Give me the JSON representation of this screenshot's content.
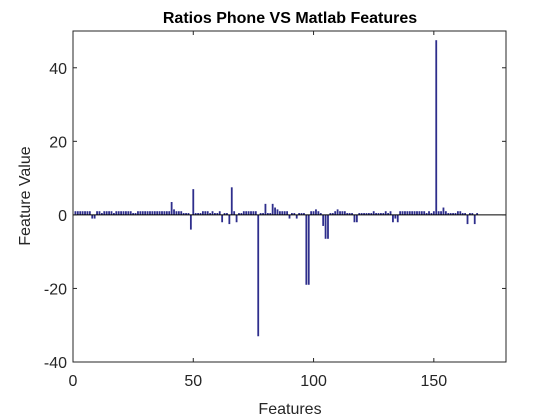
{
  "chart_data": {
    "type": "bar",
    "title": "Ratios Phone VS Matlab Features",
    "xlabel": "Features",
    "ylabel": "Feature Value",
    "xlim": [
      0,
      180
    ],
    "ylim": [
      -40,
      50
    ],
    "xticks": [
      0,
      50,
      100,
      150
    ],
    "xtick_labels": [
      "0",
      "50",
      "100",
      "150"
    ],
    "yticks": [
      -40,
      -20,
      0,
      20,
      40
    ],
    "ytick_labels": [
      "-40",
      "-20",
      "0",
      "20",
      "40"
    ],
    "grid": false,
    "legend": "none",
    "bar_color": "#2e2e8c",
    "baseline": 0,
    "x": [
      1,
      2,
      3,
      4,
      5,
      6,
      7,
      8,
      9,
      10,
      11,
      12,
      13,
      14,
      15,
      16,
      17,
      18,
      19,
      20,
      21,
      22,
      23,
      24,
      25,
      26,
      27,
      28,
      29,
      30,
      31,
      32,
      33,
      34,
      35,
      36,
      37,
      38,
      39,
      40,
      41,
      42,
      43,
      44,
      45,
      46,
      47,
      48,
      49,
      50,
      51,
      52,
      53,
      54,
      55,
      56,
      57,
      58,
      59,
      60,
      61,
      62,
      63,
      64,
      65,
      66,
      67,
      68,
      69,
      70,
      71,
      72,
      73,
      74,
      75,
      76,
      77,
      78,
      79,
      80,
      81,
      82,
      83,
      84,
      85,
      86,
      87,
      88,
      89,
      90,
      91,
      92,
      93,
      94,
      95,
      96,
      97,
      98,
      99,
      100,
      101,
      102,
      103,
      104,
      105,
      106,
      107,
      108,
      109,
      110,
      111,
      112,
      113,
      114,
      115,
      116,
      117,
      118,
      119,
      120,
      121,
      122,
      123,
      124,
      125,
      126,
      127,
      128,
      129,
      130,
      131,
      132,
      133,
      134,
      135,
      136,
      137,
      138,
      139,
      140,
      141,
      142,
      143,
      144,
      145,
      146,
      147,
      148,
      149,
      150,
      151,
      152,
      153,
      154,
      155,
      156,
      157,
      158,
      159,
      160,
      161,
      162,
      163,
      164,
      165,
      166,
      167,
      168
    ],
    "values": [
      1,
      1,
      1,
      1,
      1,
      1,
      1,
      -1,
      -1,
      1,
      1,
      0.5,
      1,
      1,
      1,
      1,
      0.5,
      1,
      1,
      1,
      1,
      1,
      1,
      1,
      0.5,
      0.5,
      1,
      1,
      1,
      1,
      1,
      1,
      1,
      1,
      1,
      1,
      1,
      1,
      1,
      1,
      3.5,
      1.5,
      1,
      1,
      1,
      0.5,
      0.5,
      0.5,
      -4,
      7,
      0.5,
      0.5,
      0.5,
      1,
      1,
      1,
      0.5,
      1,
      0.5,
      0.5,
      1,
      -2,
      0.5,
      0.5,
      -2.5,
      7.5,
      1,
      -2,
      0.5,
      0.5,
      1,
      1,
      1,
      1,
      1,
      1,
      -33,
      0.5,
      0.5,
      3,
      0.5,
      0.5,
      3,
      2,
      1.5,
      1,
      1,
      1,
      1,
      -1,
      0.5,
      0.5,
      -1,
      0.5,
      0.5,
      0.5,
      -19,
      -19,
      1,
      1,
      1.5,
      1,
      0.5,
      -3,
      -6.5,
      -6.5,
      0.5,
      0.5,
      1,
      1.5,
      1,
      1,
      1,
      0.5,
      0.5,
      0.5,
      -2,
      -2,
      0.5,
      0.5,
      0.5,
      0.5,
      0.5,
      0.5,
      1,
      0.5,
      0.5,
      0.5,
      0.5,
      1,
      0.5,
      1,
      -2,
      -1,
      -2,
      1,
      1,
      1,
      1,
      1,
      1,
      1,
      1,
      1,
      1,
      1,
      0.5,
      1,
      0.5,
      1,
      47.5,
      1,
      1,
      2,
      1,
      0.5,
      0.5,
      0.5,
      0.5,
      1,
      1,
      0.5,
      0.5,
      -2.5,
      0.5,
      0.5,
      -2.5,
      0.5
    ]
  }
}
